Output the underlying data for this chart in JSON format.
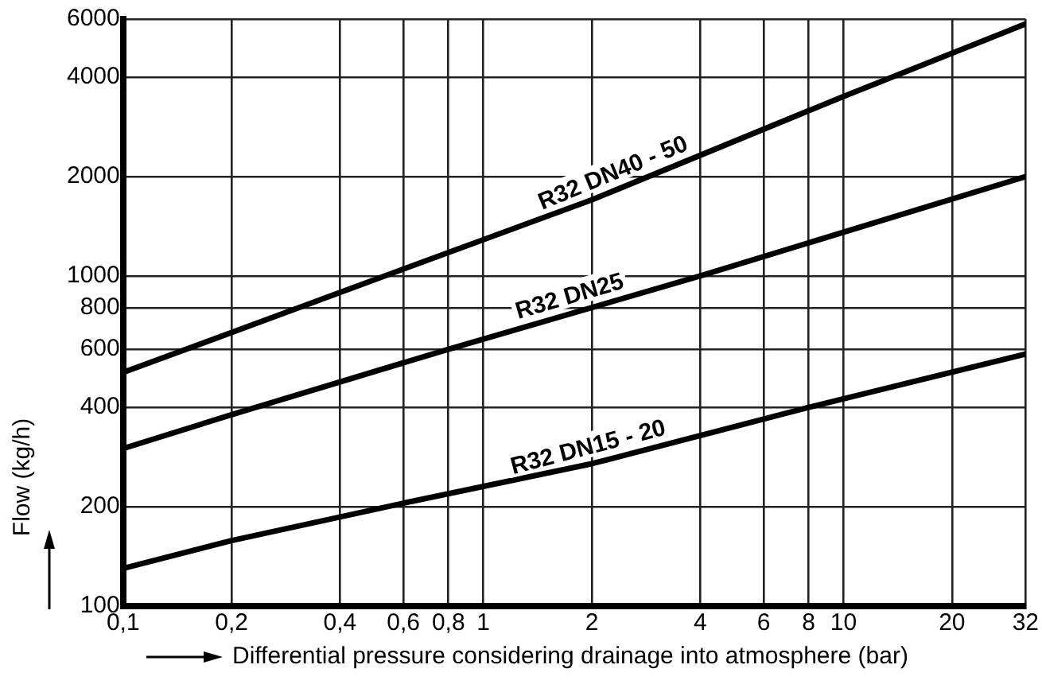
{
  "chart_data": {
    "type": "line",
    "xlabel": "Differential pressure considering drainage into atmosphere (bar)",
    "ylabel": "Flow (kg/h)",
    "log": "xy",
    "grid": true,
    "legend": false,
    "marker": "none",
    "line_style": "solid",
    "xlim": [
      0.1,
      32
    ],
    "ylim": [
      100,
      6000
    ],
    "xticks": [
      {
        "value": 0.1,
        "label": "0,1"
      },
      {
        "value": 0.2,
        "label": "0,2"
      },
      {
        "value": 0.4,
        "label": "0,4"
      },
      {
        "value": 0.6,
        "label": "0,6"
      },
      {
        "value": 0.8,
        "label": "0,8"
      },
      1,
      2,
      4,
      6,
      8,
      10,
      20,
      32
    ],
    "yticks": [
      100,
      200,
      400,
      600,
      800,
      1000,
      2000,
      4000,
      6000
    ],
    "series": [
      {
        "name": "R32 DN40 - 50",
        "color": "#000000",
        "x": [
          0.1,
          0.6,
          2,
          10,
          32
        ],
        "values": [
          510,
          1050,
          1700,
          3500,
          5800
        ]
      },
      {
        "name": "R32 DN25",
        "color": "#000000",
        "x": [
          0.1,
          0.2,
          0.8,
          4,
          32
        ],
        "values": [
          300,
          380,
          600,
          1000,
          2000
        ]
      },
      {
        "name": "R32 DN15 - 20",
        "color": "#000000",
        "x": [
          0.1,
          0.2,
          0.6,
          2,
          8,
          32
        ],
        "values": [
          130,
          158,
          205,
          270,
          400,
          580
        ]
      }
    ]
  }
}
